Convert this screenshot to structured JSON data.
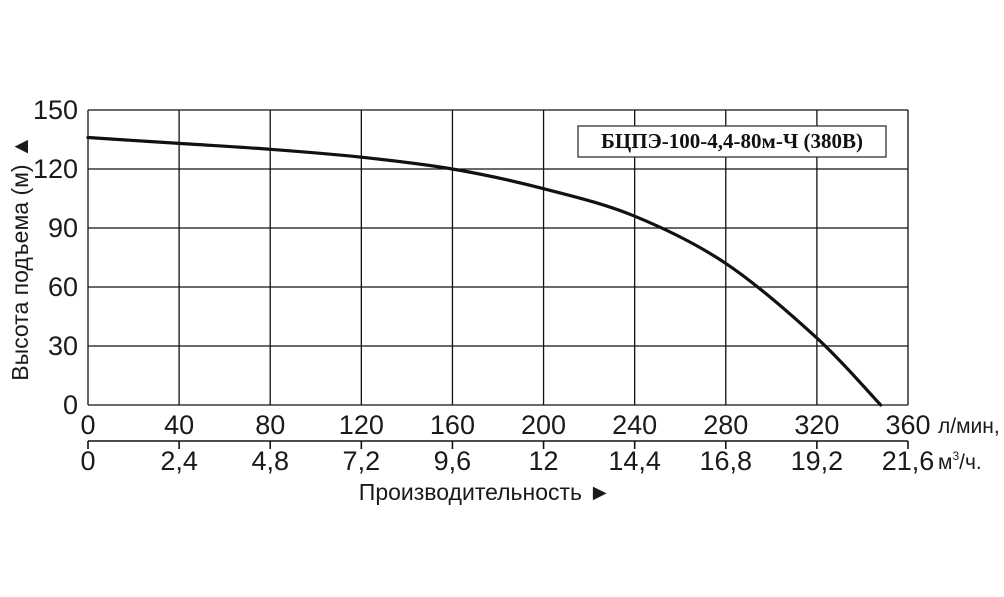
{
  "chart_data": {
    "type": "line",
    "title": "",
    "legend_label": "БЦПЭ-100-4,4-80м-Ч (380В)",
    "legend_position": "top-right",
    "grid": true,
    "ylabel": "Высота подъема (м) ▲",
    "xlabel": "Производительность ►",
    "ylim": [
      0,
      150
    ],
    "yticks": [
      "0",
      "30",
      "60",
      "90",
      "120",
      "150"
    ],
    "x_primary": {
      "unit": "л/мин,",
      "range": [
        0,
        360
      ],
      "ticks": [
        "0",
        "40",
        "80",
        "120",
        "160",
        "200",
        "240",
        "280",
        "320",
        "360"
      ]
    },
    "x_secondary": {
      "unit_base": "м",
      "unit_sup": "3",
      "unit_tail": "/ч.",
      "ticks": [
        "0",
        "2,4",
        "4,8",
        "7,2",
        "9,6",
        "12",
        "14,4",
        "16,8",
        "19,2",
        "21,6"
      ]
    },
    "series": [
      {
        "x": [
          0,
          40,
          80,
          120,
          160,
          200,
          240,
          280,
          320,
          348
        ],
        "y": [
          136,
          133,
          130,
          126,
          120,
          110,
          96,
          72,
          34,
          0
        ]
      }
    ]
  }
}
